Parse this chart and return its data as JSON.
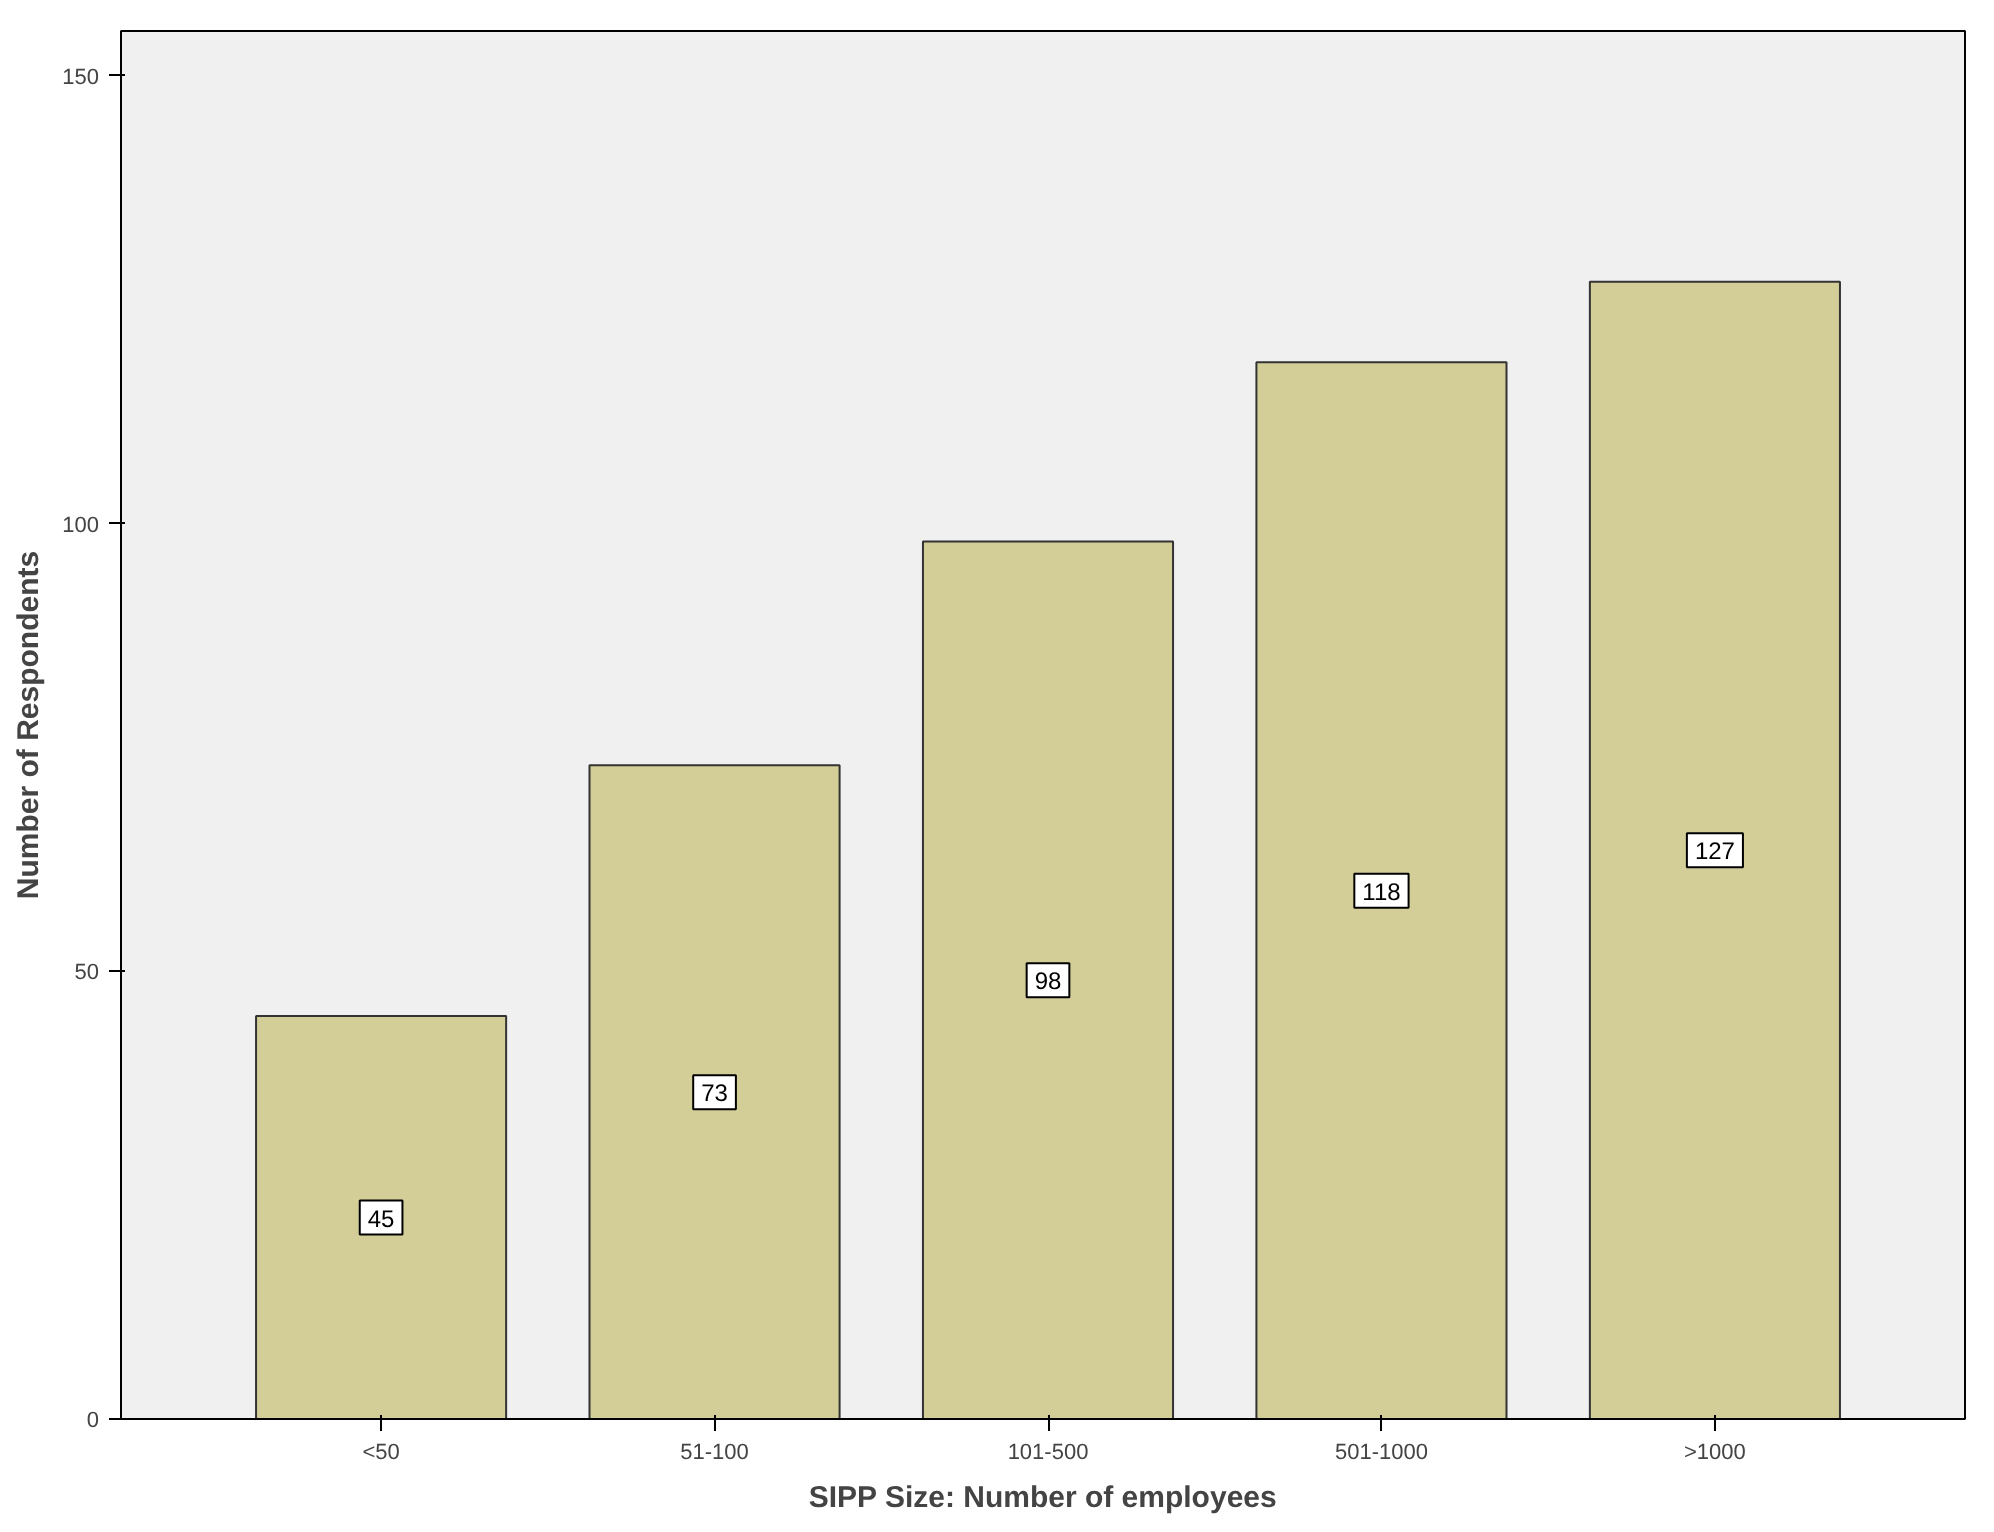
{
  "chart_data": {
    "type": "bar",
    "xlabel": "SIPP Size: Number of employees",
    "ylabel": "Number of Respondents",
    "categories": [
      "<50",
      "51-100",
      "101-500",
      "501-1000",
      ">1000"
    ],
    "values": [
      45,
      73,
      98,
      118,
      127
    ],
    "color": "#d3ce97",
    "ylim": [
      0,
      155
    ],
    "yticks": [
      0,
      50,
      100,
      150
    ],
    "grid": false,
    "data_labels": true
  }
}
